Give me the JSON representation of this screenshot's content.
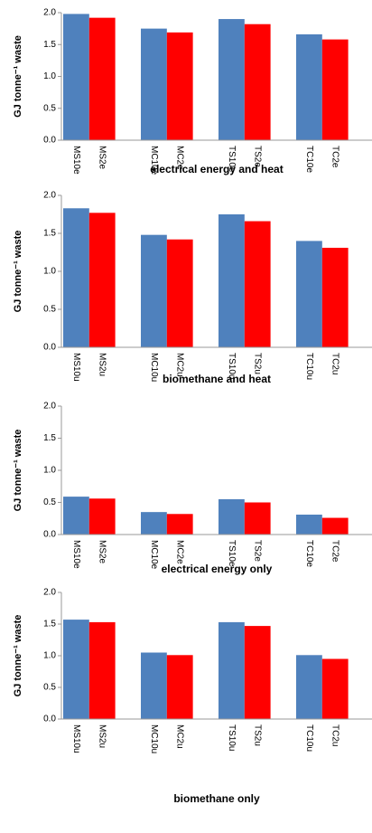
{
  "chart_data": [
    {
      "type": "bar",
      "title": "electrical energy and heat",
      "ylabel": "GJ tonne⁻¹ waste",
      "categories": [
        "MS10e",
        "MS2e",
        "MC10e",
        "MC2e",
        "TS10e",
        "TS2e",
        "TC10e",
        "TC2e"
      ],
      "values": [
        1.98,
        1.92,
        1.75,
        1.69,
        1.9,
        1.82,
        1.66,
        1.58
      ],
      "colors": [
        "#4f81bd",
        "#ff0000"
      ],
      "ylim": [
        0,
        2
      ],
      "yticks": [
        {
          "value": 0,
          "label": "0.0"
        },
        {
          "value": 0.5,
          "label": "0.5"
        },
        {
          "value": 1,
          "label": "1.0"
        },
        {
          "value": 1.5,
          "label": "1.5"
        },
        {
          "value": 2,
          "label": "2.0"
        }
      ]
    },
    {
      "type": "bar",
      "title": "biomethane and heat",
      "ylabel": "GJ tonne⁻¹ waste",
      "categories": [
        "MS10u",
        "MS2u",
        "MC10u",
        "MC2u",
        "TS10u",
        "TS2u",
        "TC10u",
        "TC2u"
      ],
      "values": [
        1.83,
        1.77,
        1.48,
        1.42,
        1.75,
        1.66,
        1.4,
        1.31
      ],
      "colors": [
        "#4f81bd",
        "#ff0000"
      ],
      "ylim": [
        0,
        2
      ],
      "yticks": [
        {
          "value": 0,
          "label": "0.0"
        },
        {
          "value": 0.5,
          "label": "0.5"
        },
        {
          "value": 1,
          "label": "1.0"
        },
        {
          "value": 1.5,
          "label": "1.5"
        },
        {
          "value": 2,
          "label": "2.0"
        }
      ]
    },
    {
      "type": "bar",
      "title": "electrical energy only",
      "ylabel": "GJ tonne⁻¹ waste",
      "categories": [
        "MS10e",
        "MS2e",
        "MC10e",
        "MC2e",
        "TS10e",
        "TS2e",
        "TC10e",
        "TC2e"
      ],
      "values": [
        0.59,
        0.56,
        0.35,
        0.32,
        0.55,
        0.5,
        0.31,
        0.26
      ],
      "colors": [
        "#4f81bd",
        "#ff0000"
      ],
      "ylim": [
        0,
        2
      ],
      "yticks": [
        {
          "value": 0,
          "label": "0.0"
        },
        {
          "value": 0.5,
          "label": "0.5"
        },
        {
          "value": 1,
          "label": "1.0"
        },
        {
          "value": 1.5,
          "label": "1.5"
        },
        {
          "value": 2,
          "label": "2.0"
        }
      ]
    },
    {
      "type": "bar",
      "title": "biomethane only",
      "ylabel": "GJ tonne⁻¹ waste",
      "categories": [
        "MS10u",
        "MS2u",
        "MC10u",
        "MC2u",
        "TS10u",
        "TS2u",
        "TC10u",
        "TC2u"
      ],
      "values": [
        1.57,
        1.53,
        1.05,
        1.01,
        1.53,
        1.47,
        1.01,
        0.95
      ],
      "colors": [
        "#4f81bd",
        "#ff0000"
      ],
      "ylim": [
        0,
        2
      ],
      "yticks": [
        {
          "value": 0,
          "label": "0.0"
        },
        {
          "value": 0.5,
          "label": "0.5"
        },
        {
          "value": 1,
          "label": "1.0"
        },
        {
          "value": 1.5,
          "label": "1.5"
        },
        {
          "value": 2,
          "label": "2.0"
        }
      ]
    }
  ]
}
